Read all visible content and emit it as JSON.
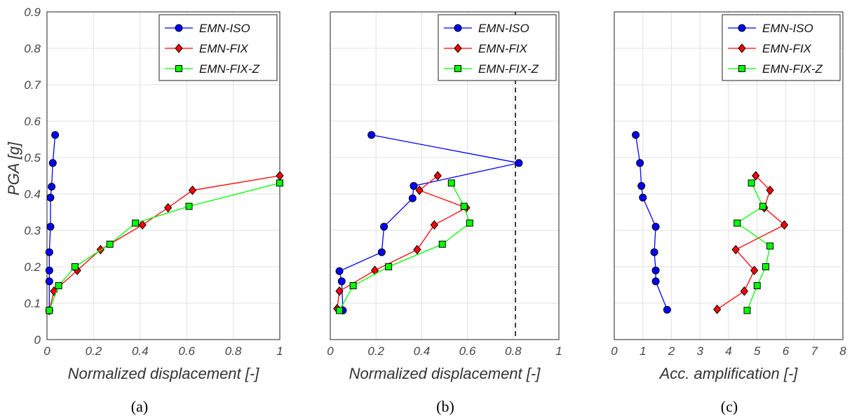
{
  "legend_labels": [
    "EMN-ISO",
    "EMN-FIX",
    "EMN-FIX-Z"
  ],
  "colors": {
    "EMN-ISO": "#0000ff",
    "EMN-FIX": "#ff0000",
    "EMN-FIX-Z": "#00ff00"
  },
  "chart_data": [
    {
      "type": "line",
      "caption": "(a)",
      "xlabel": "Normalized displacement [-]",
      "ylabel": "PGA [g]",
      "xlim": [
        0,
        1
      ],
      "ylim": [
        0,
        0.9
      ],
      "xticks": [
        "0",
        "0.2",
        "0.4",
        "0.6",
        "0.8",
        "1"
      ],
      "yticks": [
        "0",
        "0.1",
        "0.2",
        "0.3",
        "0.4",
        "0.5",
        "0.6",
        "0.7",
        "0.8",
        "0.9"
      ],
      "grid": true,
      "legend_position": "top-right",
      "series": [
        {
          "name": "EMN-ISO",
          "marker": "circle",
          "x": [
            0.01,
            0.01,
            0.01,
            0.01,
            0.015,
            0.015,
            0.02,
            0.025,
            0.035
          ],
          "y": [
            0.08,
            0.16,
            0.19,
            0.24,
            0.31,
            0.39,
            0.42,
            0.485,
            0.562
          ]
        },
        {
          "name": "EMN-FIX",
          "marker": "diamond",
          "x": [
            0.01,
            0.03,
            0.13,
            0.23,
            0.41,
            0.52,
            0.625,
            1.0
          ],
          "y": [
            0.08,
            0.133,
            0.19,
            0.247,
            0.315,
            0.362,
            0.41,
            0.45
          ]
        },
        {
          "name": "EMN-FIX-Z",
          "marker": "square",
          "x": [
            0.01,
            0.05,
            0.12,
            0.27,
            0.38,
            0.61,
            1.0
          ],
          "y": [
            0.08,
            0.148,
            0.2,
            0.262,
            0.32,
            0.366,
            0.43
          ]
        }
      ]
    },
    {
      "type": "line",
      "caption": "(b)",
      "xlabel": "Normalized displacement [-]",
      "ylabel": "",
      "xlim": [
        0,
        1
      ],
      "ylim": [
        0,
        0.9
      ],
      "xticks": [
        "0",
        "0.2",
        "0.4",
        "0.6",
        "0.8",
        "1"
      ],
      "yticks": [],
      "grid": true,
      "legend_position": "top-right",
      "vline_x": 0.81,
      "series": [
        {
          "name": "EMN-ISO",
          "marker": "circle",
          "x": [
            0.055,
            0.05,
            0.04,
            0.225,
            0.235,
            0.36,
            0.365,
            0.825,
            0.18
          ],
          "y": [
            0.08,
            0.16,
            0.188,
            0.24,
            0.31,
            0.388,
            0.422,
            0.485,
            0.562
          ]
        },
        {
          "name": "EMN-FIX",
          "marker": "diamond",
          "x": [
            0.03,
            0.04,
            0.195,
            0.38,
            0.455,
            0.595,
            0.39,
            0.47
          ],
          "y": [
            0.085,
            0.133,
            0.19,
            0.247,
            0.315,
            0.362,
            0.41,
            0.45
          ]
        },
        {
          "name": "EMN-FIX-Z",
          "marker": "square",
          "x": [
            0.04,
            0.1,
            0.255,
            0.49,
            0.61,
            0.585,
            0.53
          ],
          "y": [
            0.08,
            0.148,
            0.2,
            0.262,
            0.32,
            0.366,
            0.43
          ]
        }
      ]
    },
    {
      "type": "line",
      "caption": "(c)",
      "xlabel": "Acc. amplification [-]",
      "ylabel": "",
      "xlim": [
        0,
        8
      ],
      "ylim": [
        0,
        0.9
      ],
      "xticks": [
        "0",
        "1",
        "2",
        "3",
        "4",
        "5",
        "6",
        "7",
        "8"
      ],
      "yticks": [],
      "grid": true,
      "legend_position": "top-right",
      "series": [
        {
          "name": "EMN-ISO",
          "marker": "circle",
          "x": [
            1.85,
            1.45,
            1.45,
            1.4,
            1.45,
            1.0,
            0.95,
            0.9,
            0.75
          ],
          "y": [
            0.082,
            0.16,
            0.19,
            0.24,
            0.31,
            0.39,
            0.422,
            0.485,
            0.562
          ]
        },
        {
          "name": "EMN-FIX",
          "marker": "diamond",
          "x": [
            3.6,
            4.55,
            4.9,
            4.25,
            5.95,
            5.25,
            5.45,
            4.95
          ],
          "y": [
            0.083,
            0.133,
            0.19,
            0.247,
            0.315,
            0.362,
            0.41,
            0.45
          ]
        },
        {
          "name": "EMN-FIX-Z",
          "marker": "square",
          "x": [
            4.65,
            5.0,
            5.3,
            5.45,
            4.3,
            5.2,
            4.8
          ],
          "y": [
            0.08,
            0.148,
            0.2,
            0.257,
            0.32,
            0.366,
            0.43
          ]
        }
      ]
    }
  ]
}
